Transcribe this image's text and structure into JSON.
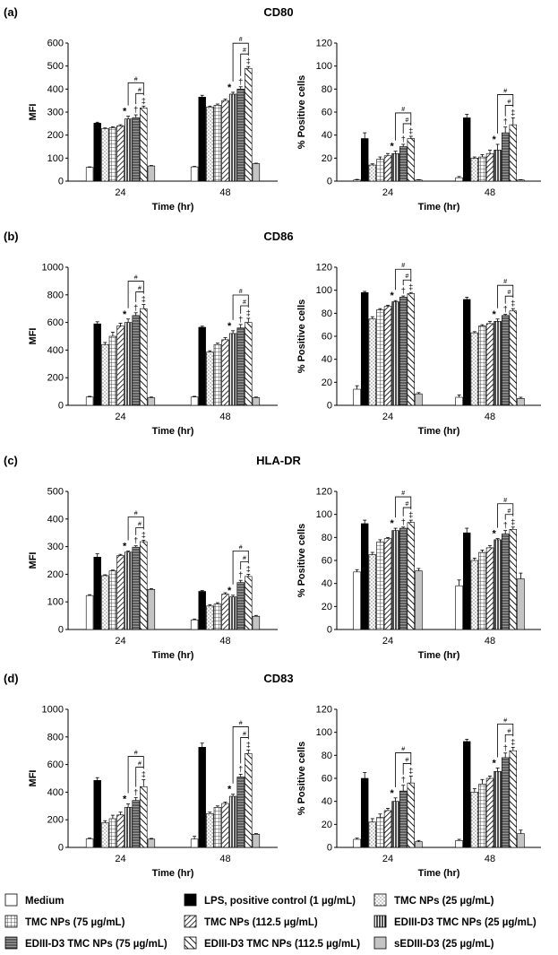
{
  "colors": {
    "medium": "#ffffff",
    "lps": "#000000",
    "tmc25": "#ffffff",
    "tmc75": "#ffffff",
    "tmc112": "#ffffff",
    "ed25": "#ffffff",
    "ed75": "#9a9a9a",
    "ed112": "#ffffff",
    "sed": "#c4c4c4"
  },
  "legend": [
    {
      "key": "medium",
      "label": "Medium",
      "pattern": "plain"
    },
    {
      "key": "lps",
      "label": "LPS, positive control (1 µg/mL)",
      "pattern": "black"
    },
    {
      "key": "tmc25",
      "label": "TMC NPs (25 µg/mL)",
      "pattern": "dots"
    },
    {
      "key": "tmc75",
      "label": "TMC NPs (75 µg/mL)",
      "pattern": "grid"
    },
    {
      "key": "tmc112",
      "label": "TMC NPs (112.5 µg/mL)",
      "pattern": "diag"
    },
    {
      "key": "ed25",
      "label": "EDIII-D3 TMC NPs (25 µg/mL)",
      "pattern": "vert"
    },
    {
      "key": "ed75",
      "label": "EDIII-D3 TMC NPs (75 µg/mL)",
      "pattern": "horiz"
    },
    {
      "key": "ed112",
      "label": "EDIII-D3 TMC NPs (112.5 µg/mL)",
      "pattern": "backdiag"
    },
    {
      "key": "sed",
      "label": "sEDIII-D3 (25 µg/mL)",
      "pattern": "lightgray"
    }
  ],
  "sig_labels": {
    "star": "*",
    "dagger": "†",
    "ddagger": "‡",
    "hash": "#"
  },
  "chart_data": [
    {
      "id": "a-mfi",
      "panel_label": "(a)",
      "title": "CD80",
      "type": "bar",
      "categories": [
        "24",
        "48"
      ],
      "xlabel": "Time (hr)",
      "ylabel": "MFI",
      "ylim": [
        0,
        600
      ],
      "yticks": [
        0,
        100,
        200,
        300,
        400,
        500,
        600
      ],
      "series": [
        {
          "key": "medium",
          "values": [
            60,
            62
          ],
          "errors": [
            2,
            2
          ]
        },
        {
          "key": "lps",
          "values": [
            252,
            365
          ],
          "errors": [
            4,
            8
          ]
        },
        {
          "key": "tmc25",
          "values": [
            228,
            322
          ],
          "errors": [
            3,
            4
          ]
        },
        {
          "key": "tmc75",
          "values": [
            232,
            330
          ],
          "errors": [
            4,
            5
          ]
        },
        {
          "key": "tmc112",
          "values": [
            240,
            350
          ],
          "errors": [
            5,
            6
          ]
        },
        {
          "key": "ed25",
          "values": [
            270,
            378
          ],
          "errors": [
            12,
            8
          ]
        },
        {
          "key": "ed75",
          "values": [
            276,
            400
          ],
          "errors": [
            12,
            10
          ]
        },
        {
          "key": "ed112",
          "values": [
            318,
            490
          ],
          "errors": [
            8,
            8
          ]
        },
        {
          "key": "sed",
          "values": [
            66,
            76
          ],
          "errors": [
            2,
            2
          ]
        }
      ]
    },
    {
      "id": "a-pct",
      "panel_label": "",
      "title": "",
      "type": "bar",
      "categories": [
        "24",
        "48"
      ],
      "xlabel": "Time (hr)",
      "ylabel": "% Positive cells",
      "ylim": [
        0,
        120
      ],
      "yticks": [
        0,
        20,
        40,
        60,
        80,
        100,
        120
      ],
      "series": [
        {
          "key": "medium",
          "values": [
            1,
            3
          ],
          "errors": [
            0.5,
            1
          ]
        },
        {
          "key": "lps",
          "values": [
            37,
            55
          ],
          "errors": [
            5,
            3
          ]
        },
        {
          "key": "tmc25",
          "values": [
            14,
            20
          ],
          "errors": [
            1,
            1
          ]
        },
        {
          "key": "tmc75",
          "values": [
            19,
            21
          ],
          "errors": [
            2,
            2
          ]
        },
        {
          "key": "tmc112",
          "values": [
            22,
            24
          ],
          "errors": [
            2,
            3
          ]
        },
        {
          "key": "ed25",
          "values": [
            24,
            27
          ],
          "errors": [
            2,
            5
          ]
        },
        {
          "key": "ed75",
          "values": [
            30,
            42
          ],
          "errors": [
            2,
            5
          ]
        },
        {
          "key": "ed112",
          "values": [
            37,
            49
          ],
          "errors": [
            2,
            6
          ]
        },
        {
          "key": "sed",
          "values": [
            1,
            1
          ],
          "errors": [
            0.3,
            0.3
          ]
        }
      ]
    },
    {
      "id": "b-mfi",
      "panel_label": "(b)",
      "title": "CD86",
      "type": "bar",
      "categories": [
        "24",
        "48"
      ],
      "xlabel": "Time (hr)",
      "ylabel": "MFI",
      "ylim": [
        0,
        1000
      ],
      "yticks": [
        0,
        200,
        400,
        600,
        800,
        1000
      ],
      "series": [
        {
          "key": "medium",
          "values": [
            60,
            60
          ],
          "errors": [
            5,
            5
          ]
        },
        {
          "key": "lps",
          "values": [
            590,
            565
          ],
          "errors": [
            15,
            8
          ]
        },
        {
          "key": "tmc25",
          "values": [
            440,
            385
          ],
          "errors": [
            15,
            10
          ]
        },
        {
          "key": "tmc75",
          "values": [
            500,
            440
          ],
          "errors": [
            30,
            10
          ]
        },
        {
          "key": "tmc112",
          "values": [
            575,
            475
          ],
          "errors": [
            20,
            15
          ]
        },
        {
          "key": "ed25",
          "values": [
            600,
            520
          ],
          "errors": [
            25,
            20
          ]
        },
        {
          "key": "ed75",
          "values": [
            650,
            560
          ],
          "errors": [
            20,
            25
          ]
        },
        {
          "key": "ed112",
          "values": [
            700,
            600
          ],
          "errors": [
            30,
            30
          ]
        },
        {
          "key": "sed",
          "values": [
            55,
            55
          ],
          "errors": [
            5,
            5
          ]
        }
      ]
    },
    {
      "id": "b-pct",
      "panel_label": "",
      "title": "",
      "type": "bar",
      "categories": [
        "24",
        "48"
      ],
      "xlabel": "Time (hr)",
      "ylabel": "% Positive cells",
      "ylim": [
        0,
        120
      ],
      "yticks": [
        0,
        20,
        40,
        60,
        80,
        100,
        120
      ],
      "series": [
        {
          "key": "medium",
          "values": [
            14,
            7
          ],
          "errors": [
            3,
            2
          ]
        },
        {
          "key": "lps",
          "values": [
            98,
            92
          ],
          "errors": [
            1,
            2
          ]
        },
        {
          "key": "tmc25",
          "values": [
            75,
            63
          ],
          "errors": [
            2,
            1
          ]
        },
        {
          "key": "tmc75",
          "values": [
            83,
            69
          ],
          "errors": [
            1,
            1
          ]
        },
        {
          "key": "tmc112",
          "values": [
            86,
            71
          ],
          "errors": [
            1,
            2
          ]
        },
        {
          "key": "ed25",
          "values": [
            90,
            73
          ],
          "errors": [
            1,
            2
          ]
        },
        {
          "key": "ed75",
          "values": [
            94,
            78
          ],
          "errors": [
            1,
            1
          ]
        },
        {
          "key": "ed112",
          "values": [
            97,
            82
          ],
          "errors": [
            1,
            2
          ]
        },
        {
          "key": "sed",
          "values": [
            10,
            6
          ],
          "errors": [
            1,
            1
          ]
        }
      ]
    },
    {
      "id": "c-mfi",
      "panel_label": "(c)",
      "title": "HLA-DR",
      "type": "bar",
      "categories": [
        "24",
        "48"
      ],
      "xlabel": "Time (hr)",
      "ylabel": "MFI",
      "ylim": [
        0,
        500
      ],
      "yticks": [
        0,
        100,
        200,
        300,
        400,
        500
      ],
      "series": [
        {
          "key": "medium",
          "values": [
            123,
            35
          ],
          "errors": [
            3,
            3
          ]
        },
        {
          "key": "lps",
          "values": [
            262,
            138
          ],
          "errors": [
            12,
            3
          ]
        },
        {
          "key": "tmc25",
          "values": [
            195,
            85
          ],
          "errors": [
            3,
            5
          ]
        },
        {
          "key": "tmc75",
          "values": [
            212,
            92
          ],
          "errors": [
            3,
            5
          ]
        },
        {
          "key": "tmc112",
          "values": [
            268,
            128
          ],
          "errors": [
            4,
            5
          ]
        },
        {
          "key": "ed25",
          "values": [
            280,
            118
          ],
          "errors": [
            4,
            6
          ]
        },
        {
          "key": "ed75",
          "values": [
            298,
            170
          ],
          "errors": [
            5,
            8
          ]
        },
        {
          "key": "ed112",
          "values": [
            318,
            192
          ],
          "errors": [
            5,
            8
          ]
        },
        {
          "key": "sed",
          "values": [
            145,
            48
          ],
          "errors": [
            3,
            3
          ]
        }
      ]
    },
    {
      "id": "c-pct",
      "panel_label": "",
      "title": "",
      "type": "bar",
      "categories": [
        "24",
        "48"
      ],
      "xlabel": "Time (hr)",
      "ylabel": "% Positive cells",
      "ylim": [
        0,
        120
      ],
      "yticks": [
        0,
        20,
        40,
        60,
        80,
        100,
        120
      ],
      "series": [
        {
          "key": "medium",
          "values": [
            50,
            38
          ],
          "errors": [
            2,
            5
          ]
        },
        {
          "key": "lps",
          "values": [
            92,
            84
          ],
          "errors": [
            3,
            4
          ]
        },
        {
          "key": "tmc25",
          "values": [
            65,
            60
          ],
          "errors": [
            2,
            2
          ]
        },
        {
          "key": "tmc75",
          "values": [
            76,
            67
          ],
          "errors": [
            2,
            2
          ]
        },
        {
          "key": "tmc112",
          "values": [
            79,
            71
          ],
          "errors": [
            1,
            2
          ]
        },
        {
          "key": "ed25",
          "values": [
            86,
            78
          ],
          "errors": [
            2,
            1
          ]
        },
        {
          "key": "ed75",
          "values": [
            88,
            83
          ],
          "errors": [
            1,
            3
          ]
        },
        {
          "key": "ed112",
          "values": [
            93,
            87
          ],
          "errors": [
            2,
            2
          ]
        },
        {
          "key": "sed",
          "values": [
            51,
            44
          ],
          "errors": [
            2,
            5
          ]
        }
      ]
    },
    {
      "id": "d-mfi",
      "panel_label": "(d)",
      "title": "CD83",
      "type": "bar",
      "categories": [
        "24",
        "48"
      ],
      "xlabel": "Time (hr)",
      "ylabel": "MFI",
      "ylim": [
        0,
        1000
      ],
      "yticks": [
        0,
        200,
        400,
        600,
        800,
        1000
      ],
      "series": [
        {
          "key": "medium",
          "values": [
            62,
            60
          ],
          "errors": [
            5,
            20
          ]
        },
        {
          "key": "lps",
          "values": [
            485,
            725
          ],
          "errors": [
            20,
            30
          ]
        },
        {
          "key": "tmc25",
          "values": [
            178,
            245
          ],
          "errors": [
            15,
            10
          ]
        },
        {
          "key": "tmc75",
          "values": [
            208,
            290
          ],
          "errors": [
            25,
            10
          ]
        },
        {
          "key": "tmc112",
          "values": [
            235,
            318
          ],
          "errors": [
            20,
            10
          ]
        },
        {
          "key": "ed25",
          "values": [
            290,
            370
          ],
          "errors": [
            25,
            15
          ]
        },
        {
          "key": "ed75",
          "values": [
            340,
            510
          ],
          "errors": [
            20,
            20
          ]
        },
        {
          "key": "ed112",
          "values": [
            440,
            680
          ],
          "errors": [
            50,
            25
          ]
        },
        {
          "key": "sed",
          "values": [
            60,
            95
          ],
          "errors": [
            5,
            5
          ]
        }
      ]
    },
    {
      "id": "d-pct",
      "panel_label": "",
      "title": "",
      "type": "bar",
      "categories": [
        "24",
        "48"
      ],
      "xlabel": "Time (hr)",
      "ylabel": "% Positive cells",
      "ylim": [
        0,
        120
      ],
      "yticks": [
        0,
        20,
        40,
        60,
        80,
        100,
        120
      ],
      "series": [
        {
          "key": "medium",
          "values": [
            7,
            6
          ],
          "errors": [
            1,
            1
          ]
        },
        {
          "key": "lps",
          "values": [
            60,
            92
          ],
          "errors": [
            5,
            2
          ]
        },
        {
          "key": "tmc25",
          "values": [
            22,
            48
          ],
          "errors": [
            3,
            3
          ]
        },
        {
          "key": "tmc75",
          "values": [
            26,
            55
          ],
          "errors": [
            3,
            4
          ]
        },
        {
          "key": "tmc112",
          "values": [
            32,
            60
          ],
          "errors": [
            2,
            2
          ]
        },
        {
          "key": "ed25",
          "values": [
            40,
            66
          ],
          "errors": [
            3,
            3
          ]
        },
        {
          "key": "ed75",
          "values": [
            49,
            78
          ],
          "errors": [
            5,
            4
          ]
        },
        {
          "key": "ed112",
          "values": [
            56,
            84
          ],
          "errors": [
            6,
            3
          ]
        },
        {
          "key": "sed",
          "values": [
            5,
            12
          ],
          "errors": [
            1,
            3
          ]
        }
      ]
    }
  ]
}
